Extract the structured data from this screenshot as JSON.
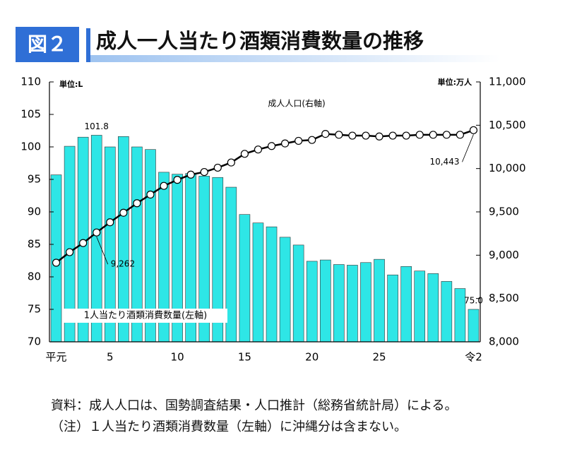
{
  "chart_data": {
    "type": "bar_line",
    "figure_label": "図２",
    "title": "成人一人当たり酒類消費数量の推移",
    "unit_left": "単位:L",
    "unit_right": "単位:万人",
    "categories": [
      "平元",
      null,
      null,
      null,
      "5",
      null,
      null,
      null,
      null,
      "10",
      null,
      null,
      null,
      null,
      "15",
      null,
      null,
      null,
      null,
      "20",
      null,
      null,
      null,
      null,
      "25",
      null,
      null,
      null,
      null,
      null,
      null,
      "令2"
    ],
    "series": [
      {
        "name": "1人当たり酒類消費数量(左軸)",
        "color": "#2ee6e6",
        "axis": "y",
        "values": [
          95.7,
          100.1,
          101.5,
          101.8,
          100.0,
          101.6,
          100.0,
          99.6,
          96.1,
          95.8,
          95.9,
          95.5,
          95.3,
          93.8,
          89.6,
          88.3,
          87.7,
          86.1,
          84.9,
          82.4,
          82.6,
          81.9,
          81.8,
          82.2,
          82.7,
          80.3,
          81.6,
          80.9,
          80.5,
          79.3,
          78.2,
          75.0
        ],
        "value_labels": [
          null,
          null,
          null,
          "101.8",
          null,
          null,
          null,
          null,
          null,
          null,
          null,
          null,
          null,
          null,
          null,
          null,
          null,
          null,
          null,
          null,
          null,
          null,
          null,
          null,
          null,
          null,
          null,
          null,
          null,
          null,
          null,
          "75.0"
        ]
      },
      {
        "name": "成人人口(右軸)",
        "color": "#000000",
        "axis": "y2",
        "values": [
          8913,
          9035,
          9140,
          9262,
          9380,
          9490,
          9600,
          9700,
          9800,
          9870,
          9930,
          9960,
          10010,
          10070,
          10170,
          10220,
          10260,
          10290,
          10320,
          10330,
          10400,
          10390,
          10380,
          10380,
          10370,
          10380,
          10380,
          10390,
          10390,
          10390,
          10390,
          10443
        ],
        "value_labels": [
          null,
          null,
          null,
          "9,262",
          null,
          null,
          null,
          null,
          null,
          null,
          null,
          null,
          null,
          null,
          null,
          null,
          null,
          null,
          null,
          null,
          null,
          null,
          null,
          null,
          null,
          null,
          null,
          null,
          null,
          null,
          null,
          "10,443"
        ]
      }
    ],
    "ylim": [
      70,
      110
    ],
    "yticks": [
      70,
      75,
      80,
      85,
      90,
      95,
      100,
      105,
      110
    ],
    "y2lim": [
      8000,
      11000
    ],
    "y2ticks": [
      {
        "value": 8000,
        "label": "8,000"
      },
      {
        "value": 8500,
        "label": "8,500"
      },
      {
        "value": 9000,
        "label": "9,000"
      },
      {
        "value": 9500,
        "label": "9,500"
      },
      {
        "value": 10000,
        "label": "10,000"
      },
      {
        "value": 10500,
        "label": "10,500"
      },
      {
        "value": 11000,
        "label": "11,000"
      }
    ],
    "grid": false
  },
  "notes": [
    "資料：成人人口は、国勢調査結果・人口推計（総務省統計局）による。",
    "（注）１人当たり酒類消費数量（左軸）に沖縄分は含まない。"
  ]
}
